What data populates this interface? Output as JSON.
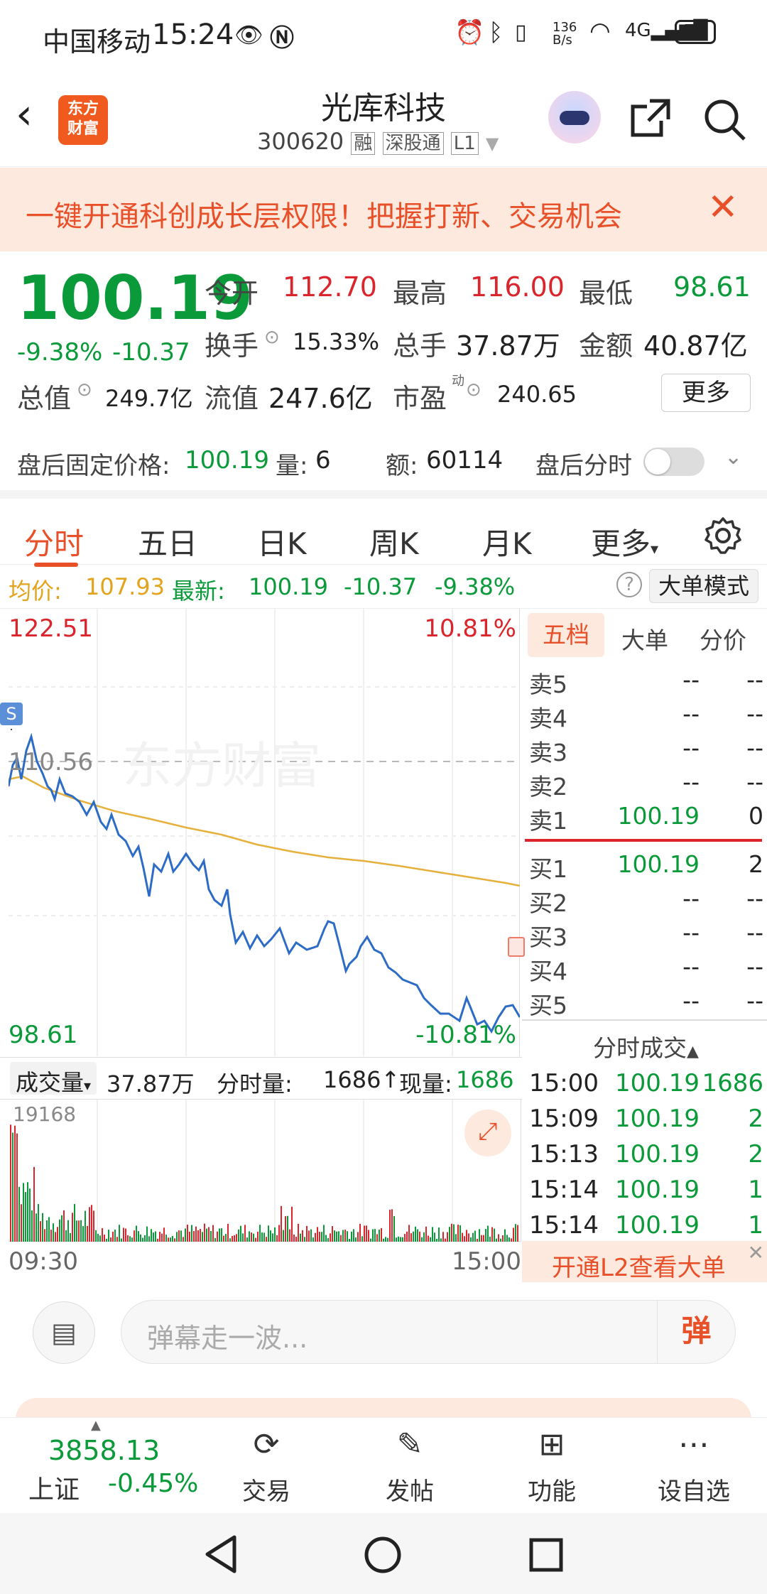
{
  "status": {
    "carrier": "中国移动",
    "time": "15:24",
    "speed": "136\nB/s",
    "battery": "75"
  },
  "header": {
    "back_icon": "chevron-left",
    "logo_text": "东方\n财富",
    "name": "光库科技",
    "code": "300620",
    "tags": [
      "融",
      "深股通",
      "L1"
    ]
  },
  "banner": {
    "text": "一键开通科创成长层权限！把握打新、交易机会"
  },
  "quote": {
    "price": "100.19",
    "pct": "-9.38%",
    "chg": "-10.37",
    "open_label": "今开",
    "open": "112.70",
    "high_label": "最高",
    "high": "116.00",
    "low_label": "最低",
    "low": "98.61",
    "turnover_label": "换手",
    "turnover": "15.33%",
    "vol_label": "总手",
    "vol": "37.87万",
    "amount_label": "金额",
    "amount": "40.87亿",
    "mcap_label": "总值",
    "mcap": "249.7亿",
    "float_label": "流值",
    "float": "247.6亿",
    "pe_label": "市盈",
    "pe_sup": "动",
    "pe": "240.65",
    "more": "更多"
  },
  "afterhours": {
    "label": "盘后固定价格:",
    "price": "100.19",
    "qty_label": "量:",
    "qty": "6",
    "amt_label": "额:",
    "amt": "60114",
    "toggle_label": "盘后分时"
  },
  "tabs": [
    "分时",
    "五日",
    "日K",
    "周K",
    "月K",
    "更多"
  ],
  "info": {
    "avg_label": "均价:",
    "avg": "107.93",
    "latest_label": "最新:",
    "latest": "100.19",
    "chg": "-10.37",
    "pct": "-9.38%",
    "mode": "大单模式"
  },
  "chart": {
    "top": "122.51",
    "top_pct": "10.81%",
    "mid": "110.56",
    "bottom": "98.61",
    "bottom_pct": "-10.81%",
    "watermark": "东方财富",
    "s_marker": "S"
  },
  "volbar": {
    "label": "成交量",
    "total": "37.87万",
    "fs_label": "分时量:",
    "fs": "1686↑",
    "now_label": "现量:",
    "now": "1686",
    "max": "19168",
    "t_start": "09:30",
    "t_end": "15:00"
  },
  "book": {
    "tabs": [
      "五档",
      "大单",
      "分价"
    ],
    "sells": [
      [
        "卖5",
        "--",
        "--"
      ],
      [
        "卖4",
        "--",
        "--"
      ],
      [
        "卖3",
        "--",
        "--"
      ],
      [
        "卖2",
        "--",
        "--"
      ],
      [
        "卖1",
        "100.19",
        "0"
      ]
    ],
    "buys": [
      [
        "买1",
        "100.19",
        "2"
      ],
      [
        "买2",
        "--",
        "--"
      ],
      [
        "买3",
        "--",
        "--"
      ],
      [
        "买4",
        "--",
        "--"
      ],
      [
        "买5",
        "--",
        "--"
      ]
    ],
    "ticks_title": "分时成交",
    "ticks": [
      [
        "15:00",
        "100.19",
        "1686"
      ],
      [
        "15:09",
        "100.19",
        "2"
      ],
      [
        "15:13",
        "100.19",
        "2"
      ],
      [
        "15:14",
        "100.19",
        "1"
      ],
      [
        "15:14",
        "100.19",
        "1"
      ]
    ],
    "l2": "开通L2查看大单"
  },
  "comment": {
    "placeholder": "弹幕走一波...",
    "send": "弹"
  },
  "bottom": {
    "index_value": "3858.13",
    "index_name": "上证",
    "index_pct": "-0.45%",
    "buttons": [
      "交易",
      "发帖",
      "功能",
      "设自选"
    ]
  }
}
